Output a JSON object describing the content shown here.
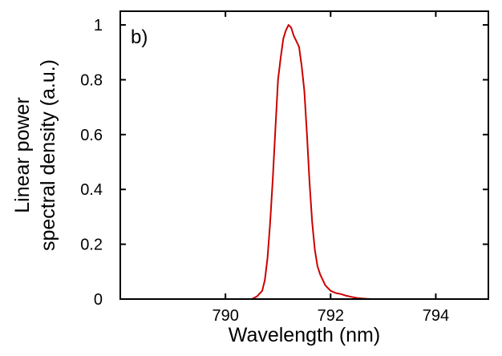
{
  "chart_data": {
    "type": "line",
    "panel_label": "b)",
    "xlabel": "Wavelength (nm)",
    "ylabel_lines": [
      "Linear power",
      "spectral density (a.u.)"
    ],
    "xlim": [
      788,
      795
    ],
    "ylim": [
      0,
      1.05
    ],
    "x_ticks": [
      790,
      792,
      794
    ],
    "x_tick_labels": [
      "790",
      "792",
      "794"
    ],
    "y_ticks": [
      0,
      0.2,
      0.4,
      0.6,
      0.8,
      1
    ],
    "y_tick_labels": [
      "0",
      "0.2",
      "0.4",
      "0.6",
      "0.8",
      "1"
    ],
    "grid": false,
    "series": [
      {
        "color": "#cc0000",
        "x": [
          790.5,
          790.6,
          790.7,
          790.75,
          790.8,
          790.85,
          790.9,
          790.95,
          791.0,
          791.05,
          791.1,
          791.15,
          791.2,
          791.25,
          791.3,
          791.35,
          791.4,
          791.45,
          791.5,
          791.55,
          791.6,
          791.65,
          791.7,
          791.75,
          791.8,
          791.9,
          792.0,
          792.1,
          792.2,
          792.3,
          792.4,
          792.5,
          792.6,
          792.7,
          792.8,
          792.9,
          793.0
        ],
        "y": [
          0.0,
          0.01,
          0.03,
          0.07,
          0.15,
          0.28,
          0.44,
          0.62,
          0.8,
          0.88,
          0.95,
          0.98,
          1.0,
          0.99,
          0.96,
          0.94,
          0.92,
          0.85,
          0.76,
          0.6,
          0.42,
          0.28,
          0.18,
          0.12,
          0.09,
          0.05,
          0.03,
          0.022,
          0.018,
          0.012,
          0.008,
          0.004,
          0.002,
          0.001,
          0.0,
          0.0,
          0.0
        ]
      }
    ]
  }
}
